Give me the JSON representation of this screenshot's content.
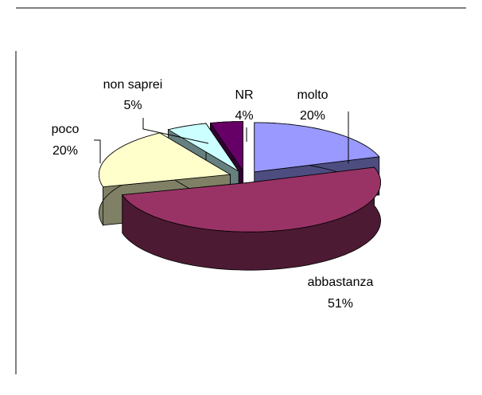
{
  "chart_data": {
    "type": "pie3d",
    "categories": [
      "molto",
      "abbastanza",
      "poco",
      "non saprei",
      "NR"
    ],
    "values": [
      20,
      51,
      20,
      5,
      4
    ],
    "value_labels": [
      "20%",
      "51%",
      "20%",
      "5%",
      "4%"
    ],
    "colors": [
      "#9999ff",
      "#993366",
      "#ffffcc",
      "#ccffff",
      "#660066"
    ]
  }
}
